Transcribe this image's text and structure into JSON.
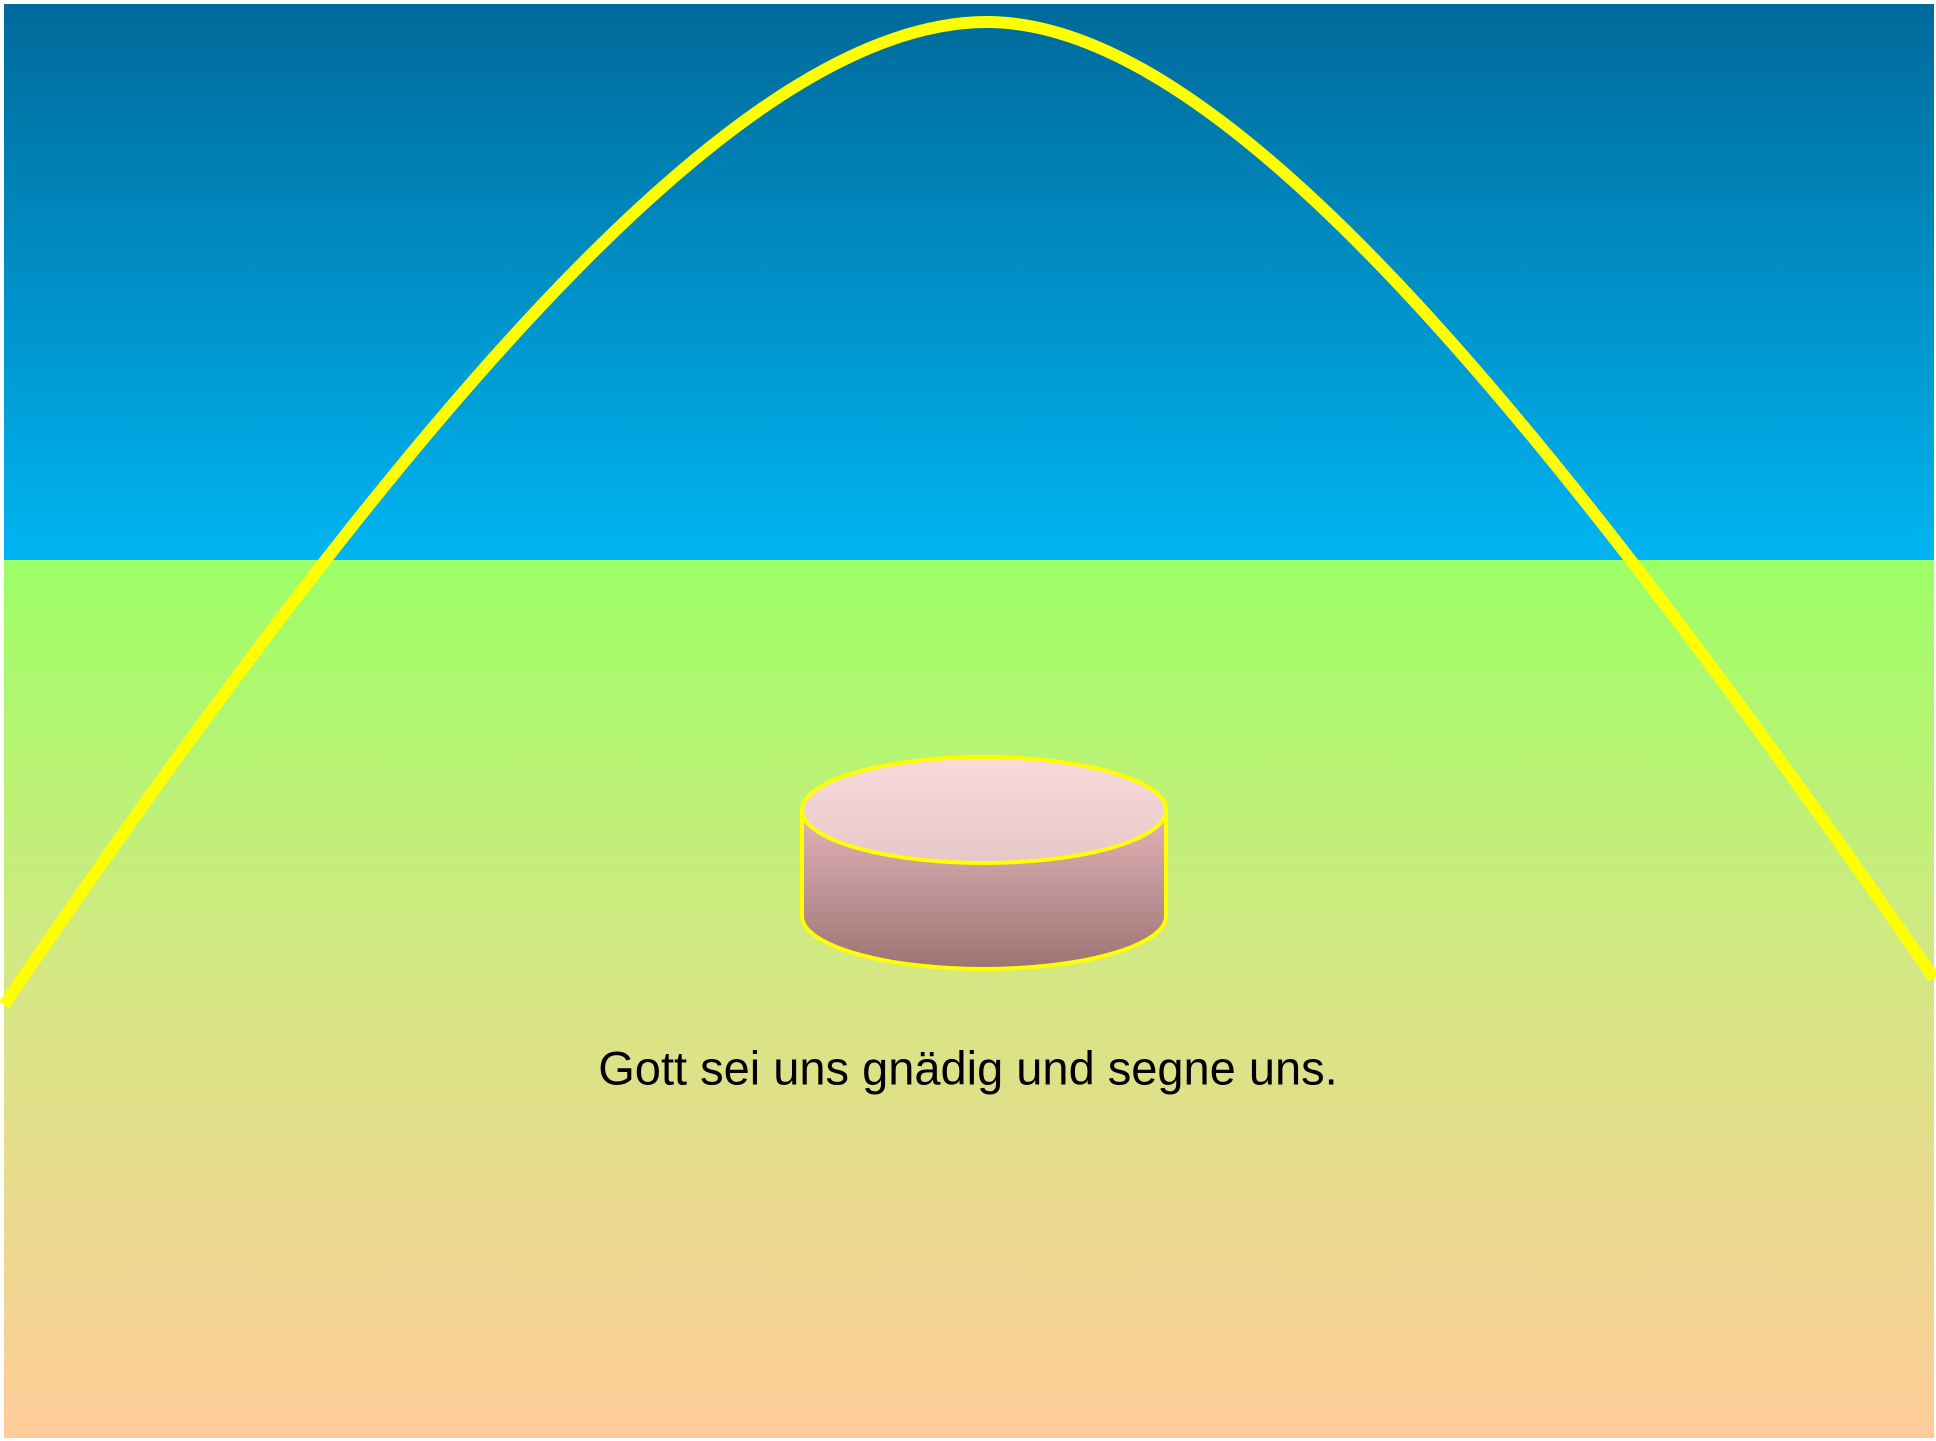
{
  "caption": "Gott sei uns gnädig und segne uns."
}
